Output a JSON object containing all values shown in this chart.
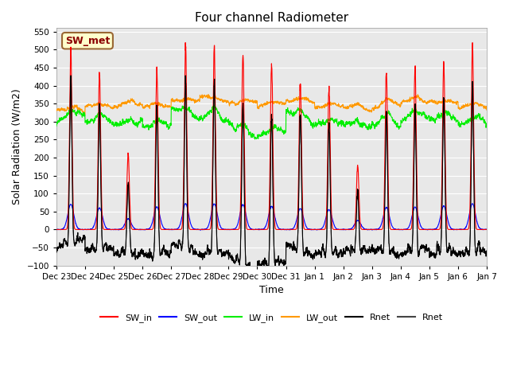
{
  "title": "Four channel Radiometer",
  "xlabel": "Time",
  "ylabel": "Solar Radiation (W/m2)",
  "ylim": [
    -100,
    560
  ],
  "yticks": [
    -100,
    -50,
    0,
    50,
    100,
    150,
    200,
    250,
    300,
    350,
    400,
    450,
    500,
    550
  ],
  "x_tick_labels": [
    "Dec 23",
    "Dec 24",
    "Dec 25",
    "Dec 26",
    "Dec 27",
    "Dec 28",
    "Dec 29",
    "Dec 30",
    "Dec 31",
    "Jan 1",
    "Jan 2",
    "Jan 3",
    "Jan 4",
    "Jan 5",
    "Jan 6",
    "Jan 7"
  ],
  "colors": {
    "SW_in": "#ff0000",
    "SW_out": "#0000ff",
    "LW_in": "#00ee00",
    "LW_out": "#ff9900",
    "Rnet_black": "#000000",
    "Rnet_dark": "#444444"
  },
  "annotation_text": "SW_met",
  "bg_color": "#e8e8e8",
  "n_days": 15,
  "ppd": 144,
  "peak_heights_SW_in": [
    500,
    430,
    210,
    450,
    515,
    510,
    495,
    460,
    415,
    395,
    180,
    440,
    445,
    470,
    515
  ],
  "LW_in_base": 300,
  "LW_out_base": 345
}
